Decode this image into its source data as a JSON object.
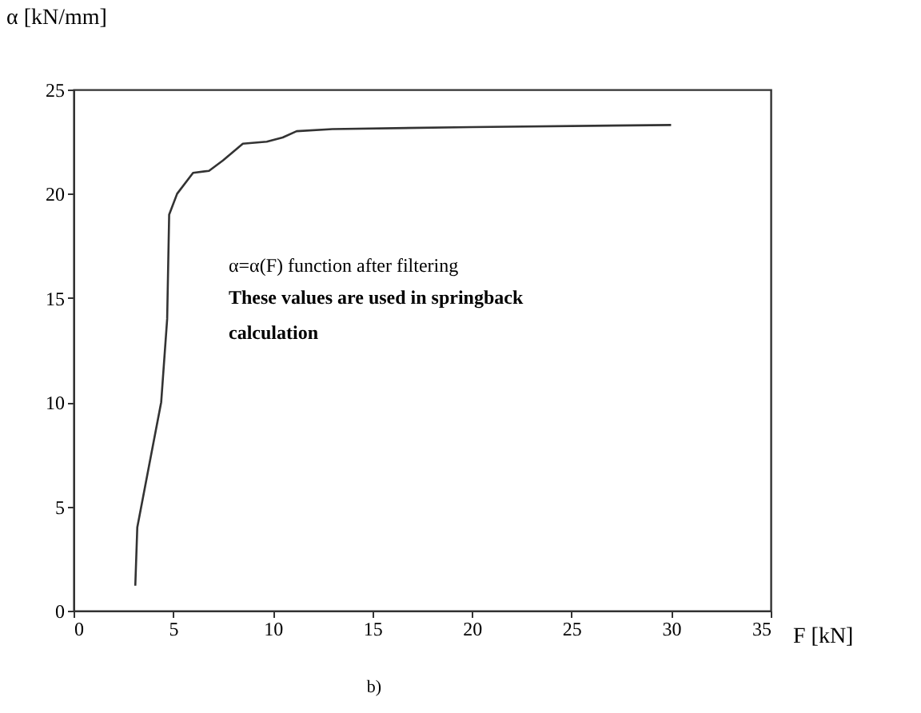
{
  "chart_data": {
    "type": "line",
    "xlabel": "F [kN]",
    "ylabel": "α [kN/mm]",
    "x": [
      3.1,
      3.2,
      3.6,
      4.0,
      4.4,
      4.7,
      4.8,
      5.2,
      6.0,
      6.8,
      7.5,
      8.5,
      9.7,
      10.5,
      11.2,
      13,
      20,
      30
    ],
    "series": [
      {
        "color": "#333333",
        "values": [
          1.2,
          4,
          6,
          8,
          10,
          14,
          19,
          20,
          21,
          21.1,
          21.6,
          22.4,
          22.5,
          22.7,
          23.0,
          23.1,
          23.2,
          23.3
        ]
      }
    ],
    "xlim": [
      0,
      35
    ],
    "xticks": [
      0,
      5,
      10,
      15,
      20,
      25,
      30,
      35
    ],
    "ylim": [
      0,
      25
    ],
    "yticks": [
      0,
      5,
      10,
      15,
      20,
      25
    ],
    "grid": false,
    "marker": "none",
    "line_style": "solid",
    "annotations": [
      "α=α(F) function after filtering",
      "These values are used in springback",
      "calculation",
      "b)"
    ]
  }
}
